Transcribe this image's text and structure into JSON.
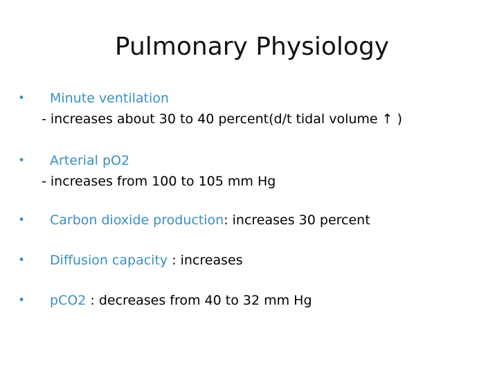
{
  "slide": {
    "title": "Pulmonary Physiology",
    "accent_color": "#3a8fbf",
    "bullet_glyph": "•",
    "items": [
      {
        "term": "Minute ventilation",
        "sub": "- increases about 30 to 40 percent(d/t tidal volume",
        "sub_arrow": "↑ )"
      },
      {
        "term": "Arterial pO2",
        "sub": "- increases from 100 to 105 mm Hg"
      },
      {
        "term": "Carbon dioxide production",
        "desc": ": increases 30 percent"
      },
      {
        "term": "Diffusion capacity",
        "desc": " : increases"
      },
      {
        "term": "pCO2",
        "desc": " : decreases from 40 to 32 mm Hg"
      }
    ]
  }
}
